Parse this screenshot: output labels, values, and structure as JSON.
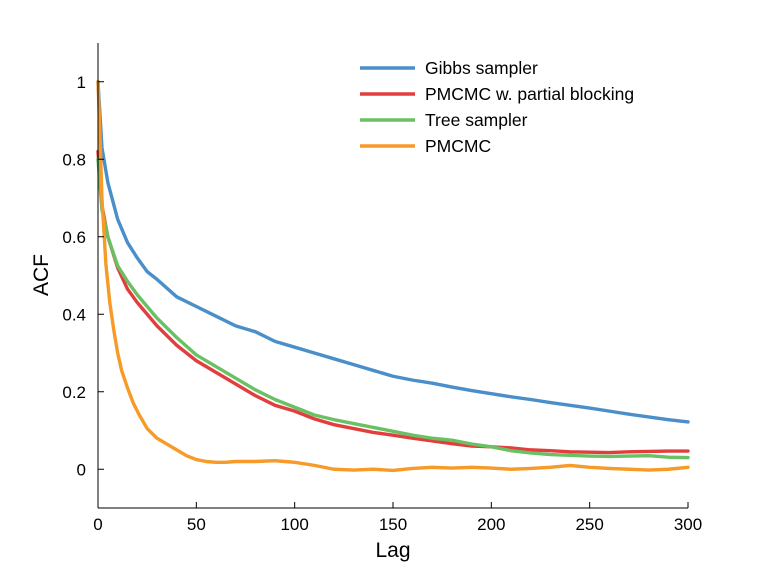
{
  "chart_data": {
    "type": "line",
    "title": "",
    "xlabel": "Lag",
    "ylabel": "ACF",
    "xlim": [
      0,
      300
    ],
    "ylim": [
      -0.1,
      1.1
    ],
    "xticks": [
      0,
      50,
      100,
      150,
      200,
      250,
      300
    ],
    "yticks": [
      0,
      0.2,
      0.4,
      0.6,
      0.8,
      1
    ],
    "xtick_labels": [
      "0",
      "50",
      "100",
      "150",
      "200",
      "250",
      "300"
    ],
    "ytick_labels": [
      "0",
      "0.2",
      "0.4",
      "0.6",
      "0.8",
      "1"
    ],
    "grid": false,
    "legend_position": "top-right",
    "series": [
      {
        "name": "Gibbs sampler",
        "color": "#4a8fc9",
        "x": [
          0,
          2,
          5,
          10,
          15,
          20,
          25,
          30,
          40,
          50,
          60,
          70,
          80,
          90,
          100,
          110,
          120,
          130,
          140,
          150,
          160,
          170,
          180,
          190,
          200,
          210,
          220,
          230,
          240,
          250,
          260,
          270,
          280,
          290,
          300
        ],
        "y": [
          1.0,
          0.83,
          0.74,
          0.645,
          0.585,
          0.545,
          0.51,
          0.49,
          0.445,
          0.42,
          0.395,
          0.37,
          0.355,
          0.33,
          0.315,
          0.3,
          0.285,
          0.27,
          0.255,
          0.24,
          0.23,
          0.222,
          0.212,
          0.203,
          0.195,
          0.187,
          0.18,
          0.172,
          0.165,
          0.158,
          0.15,
          0.142,
          0.135,
          0.128,
          0.122
        ]
      },
      {
        "name": "PMCMC w. partial blocking",
        "color": "#e23e3e",
        "x": [
          0,
          2,
          5,
          10,
          15,
          20,
          25,
          30,
          40,
          50,
          60,
          70,
          80,
          90,
          100,
          110,
          120,
          130,
          140,
          150,
          160,
          170,
          180,
          190,
          200,
          210,
          220,
          230,
          240,
          250,
          260,
          270,
          280,
          290,
          300
        ],
        "y": [
          0.82,
          0.68,
          0.6,
          0.52,
          0.465,
          0.43,
          0.4,
          0.37,
          0.32,
          0.28,
          0.25,
          0.22,
          0.19,
          0.165,
          0.15,
          0.13,
          0.115,
          0.105,
          0.095,
          0.088,
          0.08,
          0.073,
          0.066,
          0.06,
          0.058,
          0.055,
          0.05,
          0.048,
          0.045,
          0.044,
          0.043,
          0.045,
          0.046,
          0.047,
          0.047
        ]
      },
      {
        "name": "Tree sampler",
        "color": "#6ac163",
        "x": [
          0,
          2,
          5,
          10,
          15,
          20,
          25,
          30,
          40,
          50,
          60,
          70,
          80,
          90,
          100,
          110,
          120,
          130,
          140,
          150,
          160,
          170,
          180,
          190,
          200,
          210,
          220,
          230,
          240,
          250,
          260,
          270,
          280,
          290,
          300
        ],
        "y": [
          0.8,
          0.67,
          0.6,
          0.525,
          0.485,
          0.45,
          0.42,
          0.39,
          0.34,
          0.295,
          0.265,
          0.235,
          0.205,
          0.18,
          0.16,
          0.14,
          0.128,
          0.118,
          0.108,
          0.098,
          0.088,
          0.08,
          0.075,
          0.065,
          0.058,
          0.048,
          0.042,
          0.038,
          0.036,
          0.034,
          0.033,
          0.034,
          0.035,
          0.031,
          0.03
        ]
      },
      {
        "name": "PMCMC",
        "color": "#f79a27",
        "x": [
          0,
          1,
          2,
          4,
          6,
          8,
          10,
          12,
          15,
          18,
          21,
          25,
          30,
          35,
          40,
          45,
          50,
          55,
          60,
          65,
          70,
          80,
          90,
          95,
          100,
          110,
          120,
          130,
          140,
          150,
          160,
          170,
          180,
          190,
          200,
          210,
          220,
          230,
          240,
          250,
          260,
          270,
          280,
          290,
          300
        ],
        "y": [
          1.0,
          0.86,
          0.7,
          0.53,
          0.43,
          0.36,
          0.3,
          0.255,
          0.21,
          0.17,
          0.14,
          0.105,
          0.08,
          0.065,
          0.05,
          0.035,
          0.025,
          0.02,
          0.018,
          0.018,
          0.02,
          0.02,
          0.022,
          0.02,
          0.018,
          0.01,
          0.0,
          -0.002,
          0.0,
          -0.003,
          0.002,
          0.005,
          0.003,
          0.005,
          0.003,
          0.0,
          0.002,
          0.005,
          0.01,
          0.005,
          0.002,
          0.0,
          -0.002,
          0.0,
          0.005
        ]
      }
    ]
  }
}
